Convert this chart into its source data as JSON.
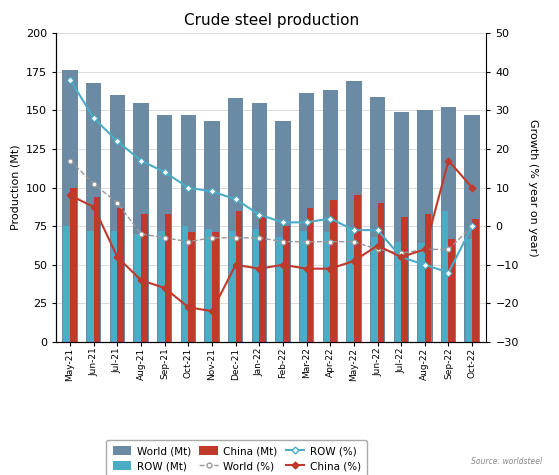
{
  "title": "Crude steel production",
  "ylabel_left": "Production (Mt)",
  "ylabel_right": "Growth (% year on year)",
  "source": "Source: worldsteel",
  "categories": [
    "May-21",
    "Jun-21",
    "Jul-21",
    "Aug-21",
    "Sep-21",
    "Oct-21",
    "Nov-21",
    "Dec-21",
    "Jan-22",
    "Feb-22",
    "Mar-22",
    "Apr-22",
    "May-22",
    "Jun-22",
    "Jul-22",
    "Aug-22",
    "Sep-22",
    "Oct-22"
  ],
  "world_mt": [
    176,
    168,
    160,
    155,
    147,
    147,
    143,
    158,
    155,
    143,
    161,
    163,
    169,
    159,
    149,
    150,
    152,
    147
  ],
  "row_mt": [
    75,
    72,
    72,
    70,
    72,
    75,
    73,
    72,
    73,
    68,
    72,
    71,
    74,
    68,
    65,
    64,
    85,
    67
  ],
  "china_mt": [
    100,
    94,
    87,
    83,
    83,
    71,
    71,
    85,
    82,
    75,
    87,
    92,
    95,
    90,
    81,
    83,
    67,
    80
  ],
  "world_pct": [
    17,
    11,
    6,
    -2,
    -3,
    -4,
    -3,
    -3,
    -3,
    -4,
    -4,
    -4,
    -4,
    -6,
    -7,
    -6,
    -6,
    0
  ],
  "row_pct": [
    38,
    28,
    22,
    17,
    14,
    10,
    9,
    7,
    3,
    1,
    1,
    2,
    -1,
    -1,
    -8,
    -10,
    -12,
    0
  ],
  "china_pct": [
    8,
    5,
    -8,
    -14,
    -16,
    -21,
    -22,
    -10,
    -11,
    -10,
    -11,
    -11,
    -9,
    -5,
    -8,
    -6,
    17,
    10
  ],
  "ylim_left": [
    0,
    200
  ],
  "ylim_right": [
    -30,
    50
  ],
  "yticks_left": [
    0,
    25,
    50,
    75,
    100,
    125,
    150,
    175,
    200
  ],
  "yticks_right": [
    -30,
    -20,
    -10,
    0,
    10,
    20,
    30,
    40,
    50
  ],
  "world_bar_color": "#6b8ba4",
  "row_bar_color": "#4bacc6",
  "china_bar_color": "#c0392b",
  "world_line_color": "#999999",
  "row_line_color": "#4bacc6",
  "china_line_color": "#c0392b",
  "bg_color": "#ffffff",
  "grid_color": "#cccccc"
}
